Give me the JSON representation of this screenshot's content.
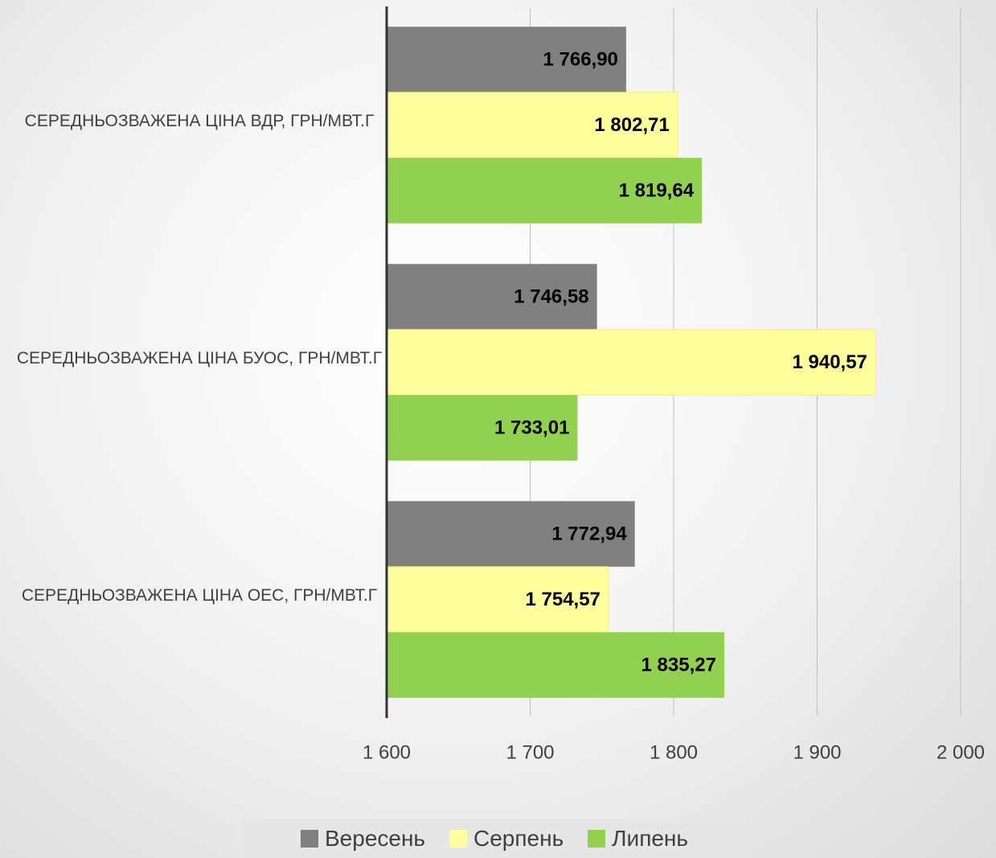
{
  "chart_data": {
    "type": "bar",
    "orientation": "horizontal",
    "categories": [
      "СЕРЕДНЬОЗВАЖЕНА ЦІНА ВДР, ГРН/МВТ.Г",
      "СЕРЕДНЬОЗВАЖЕНА ЦІНА БУОС, ГРН/МВТ.Г",
      "СЕРЕДНЬОЗВАЖЕНА ЦІНА ОЕС, ГРН/МВТ.Г"
    ],
    "series": [
      {
        "name": "Вересень",
        "color": "#808080",
        "values": [
          1766.9,
          1746.58,
          1772.94
        ],
        "value_labels": [
          "1 766,90",
          "1 746,58",
          "1 772,94"
        ]
      },
      {
        "name": "Серпень",
        "color": "#ffff9e",
        "values": [
          1802.71,
          1940.57,
          1754.57
        ],
        "value_labels": [
          "1 802,71",
          "1 940,57",
          "1 754,57"
        ]
      },
      {
        "name": "Липень",
        "color": "#92d050",
        "values": [
          1819.64,
          1733.01,
          1835.27
        ],
        "value_labels": [
          "1 819,64",
          "1 733,01",
          "1 835,27"
        ]
      }
    ],
    "xlim": [
      1600,
      2000
    ],
    "xticks": [
      {
        "value": 1600,
        "label": "1 600"
      },
      {
        "value": 1700,
        "label": "1 700"
      },
      {
        "value": 1800,
        "label": "1 800"
      },
      {
        "value": 1900,
        "label": "1 900"
      },
      {
        "value": 2000,
        "label": "2 000"
      }
    ],
    "grid": true,
    "legend": "bottom"
  }
}
